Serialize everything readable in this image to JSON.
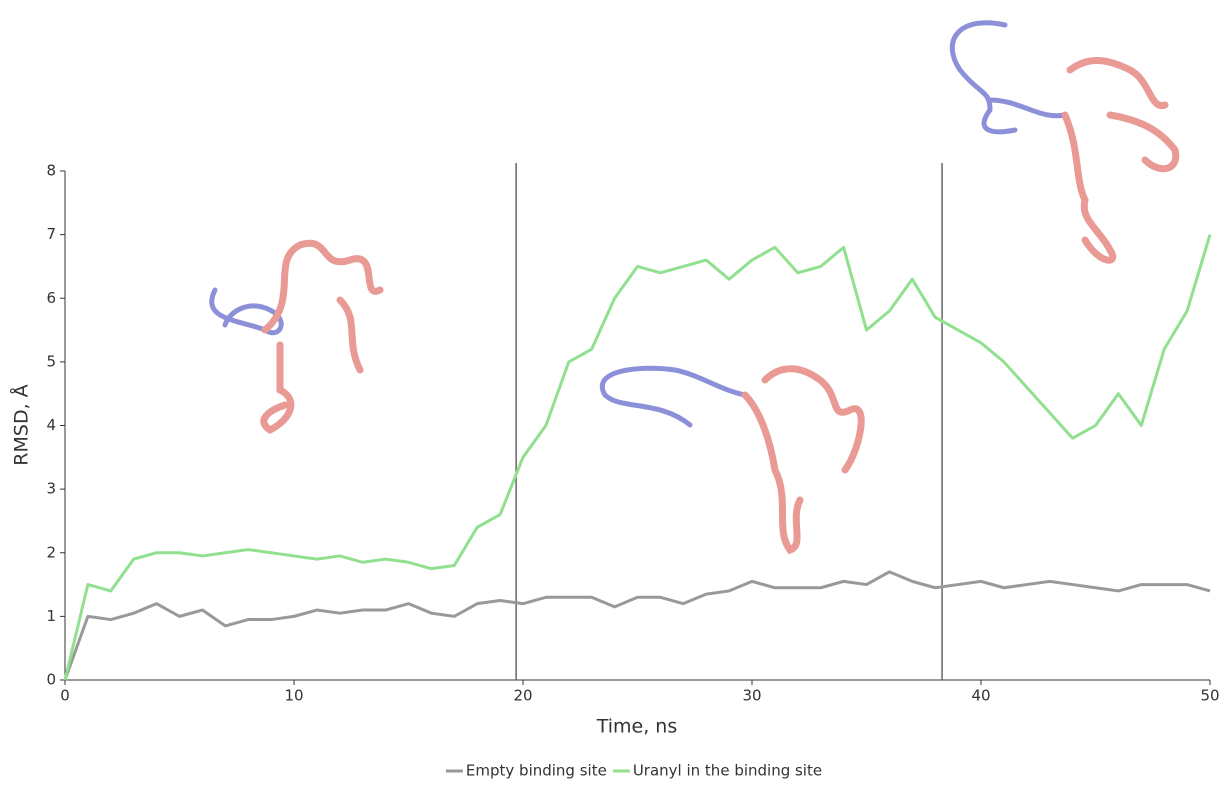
{
  "chart_data": {
    "type": "line",
    "x_label": "Time, ns",
    "y_label": "RMSD, Å",
    "x": [
      0,
      1,
      2,
      3,
      4,
      5,
      6,
      7,
      8,
      9,
      10,
      11,
      12,
      13,
      14,
      15,
      16,
      17,
      18,
      19,
      20,
      21,
      22,
      23,
      24,
      25,
      26,
      27,
      28,
      29,
      30,
      31,
      32,
      33,
      34,
      35,
      36,
      37,
      38,
      39,
      40,
      41,
      42,
      43,
      44,
      45,
      46,
      47,
      48,
      49,
      50
    ],
    "series": [
      {
        "name": "Empty binding site",
        "color": "#999999",
        "values": [
          0,
          1.0,
          0.95,
          1.05,
          1.2,
          1.0,
          1.1,
          0.85,
          0.95,
          0.95,
          1.0,
          1.1,
          1.05,
          1.1,
          1.1,
          1.2,
          1.05,
          1.0,
          1.2,
          1.25,
          1.2,
          1.3,
          1.3,
          1.3,
          1.15,
          1.3,
          1.3,
          1.2,
          1.35,
          1.4,
          1.55,
          1.45,
          1.45,
          1.45,
          1.55,
          1.5,
          1.7,
          1.55,
          1.45,
          1.5,
          1.55,
          1.45,
          1.5,
          1.55,
          1.5,
          1.45,
          1.4,
          1.5,
          1.5,
          1.5,
          1.4
        ]
      },
      {
        "name": "Uranyl in the binding site",
        "color": "#90e090",
        "values": [
          0,
          1.5,
          1.4,
          1.9,
          2.0,
          2.0,
          1.95,
          2.0,
          2.05,
          2.0,
          1.95,
          1.9,
          1.95,
          1.85,
          1.9,
          1.85,
          1.75,
          1.8,
          2.4,
          2.6,
          3.5,
          4.0,
          5.0,
          5.2,
          6.0,
          6.5,
          6.4,
          6.5,
          6.6,
          6.3,
          6.6,
          6.8,
          6.4,
          6.5,
          6.8,
          5.5,
          5.8,
          6.3,
          5.7,
          5.5,
          5.3,
          5.0,
          4.6,
          4.2,
          3.8,
          4.0,
          4.5,
          4.0,
          5.2,
          5.8,
          7.0
        ]
      }
    ],
    "vlines": [
      19.7,
      38.3
    ],
    "xlim": [
      0,
      50
    ],
    "xticks": [
      0,
      10,
      20,
      30,
      40,
      50
    ],
    "ylim": [
      0,
      8
    ],
    "yticks": [
      0,
      1,
      2,
      3,
      4,
      5,
      6,
      7,
      8
    ],
    "legend": "bottom"
  }
}
